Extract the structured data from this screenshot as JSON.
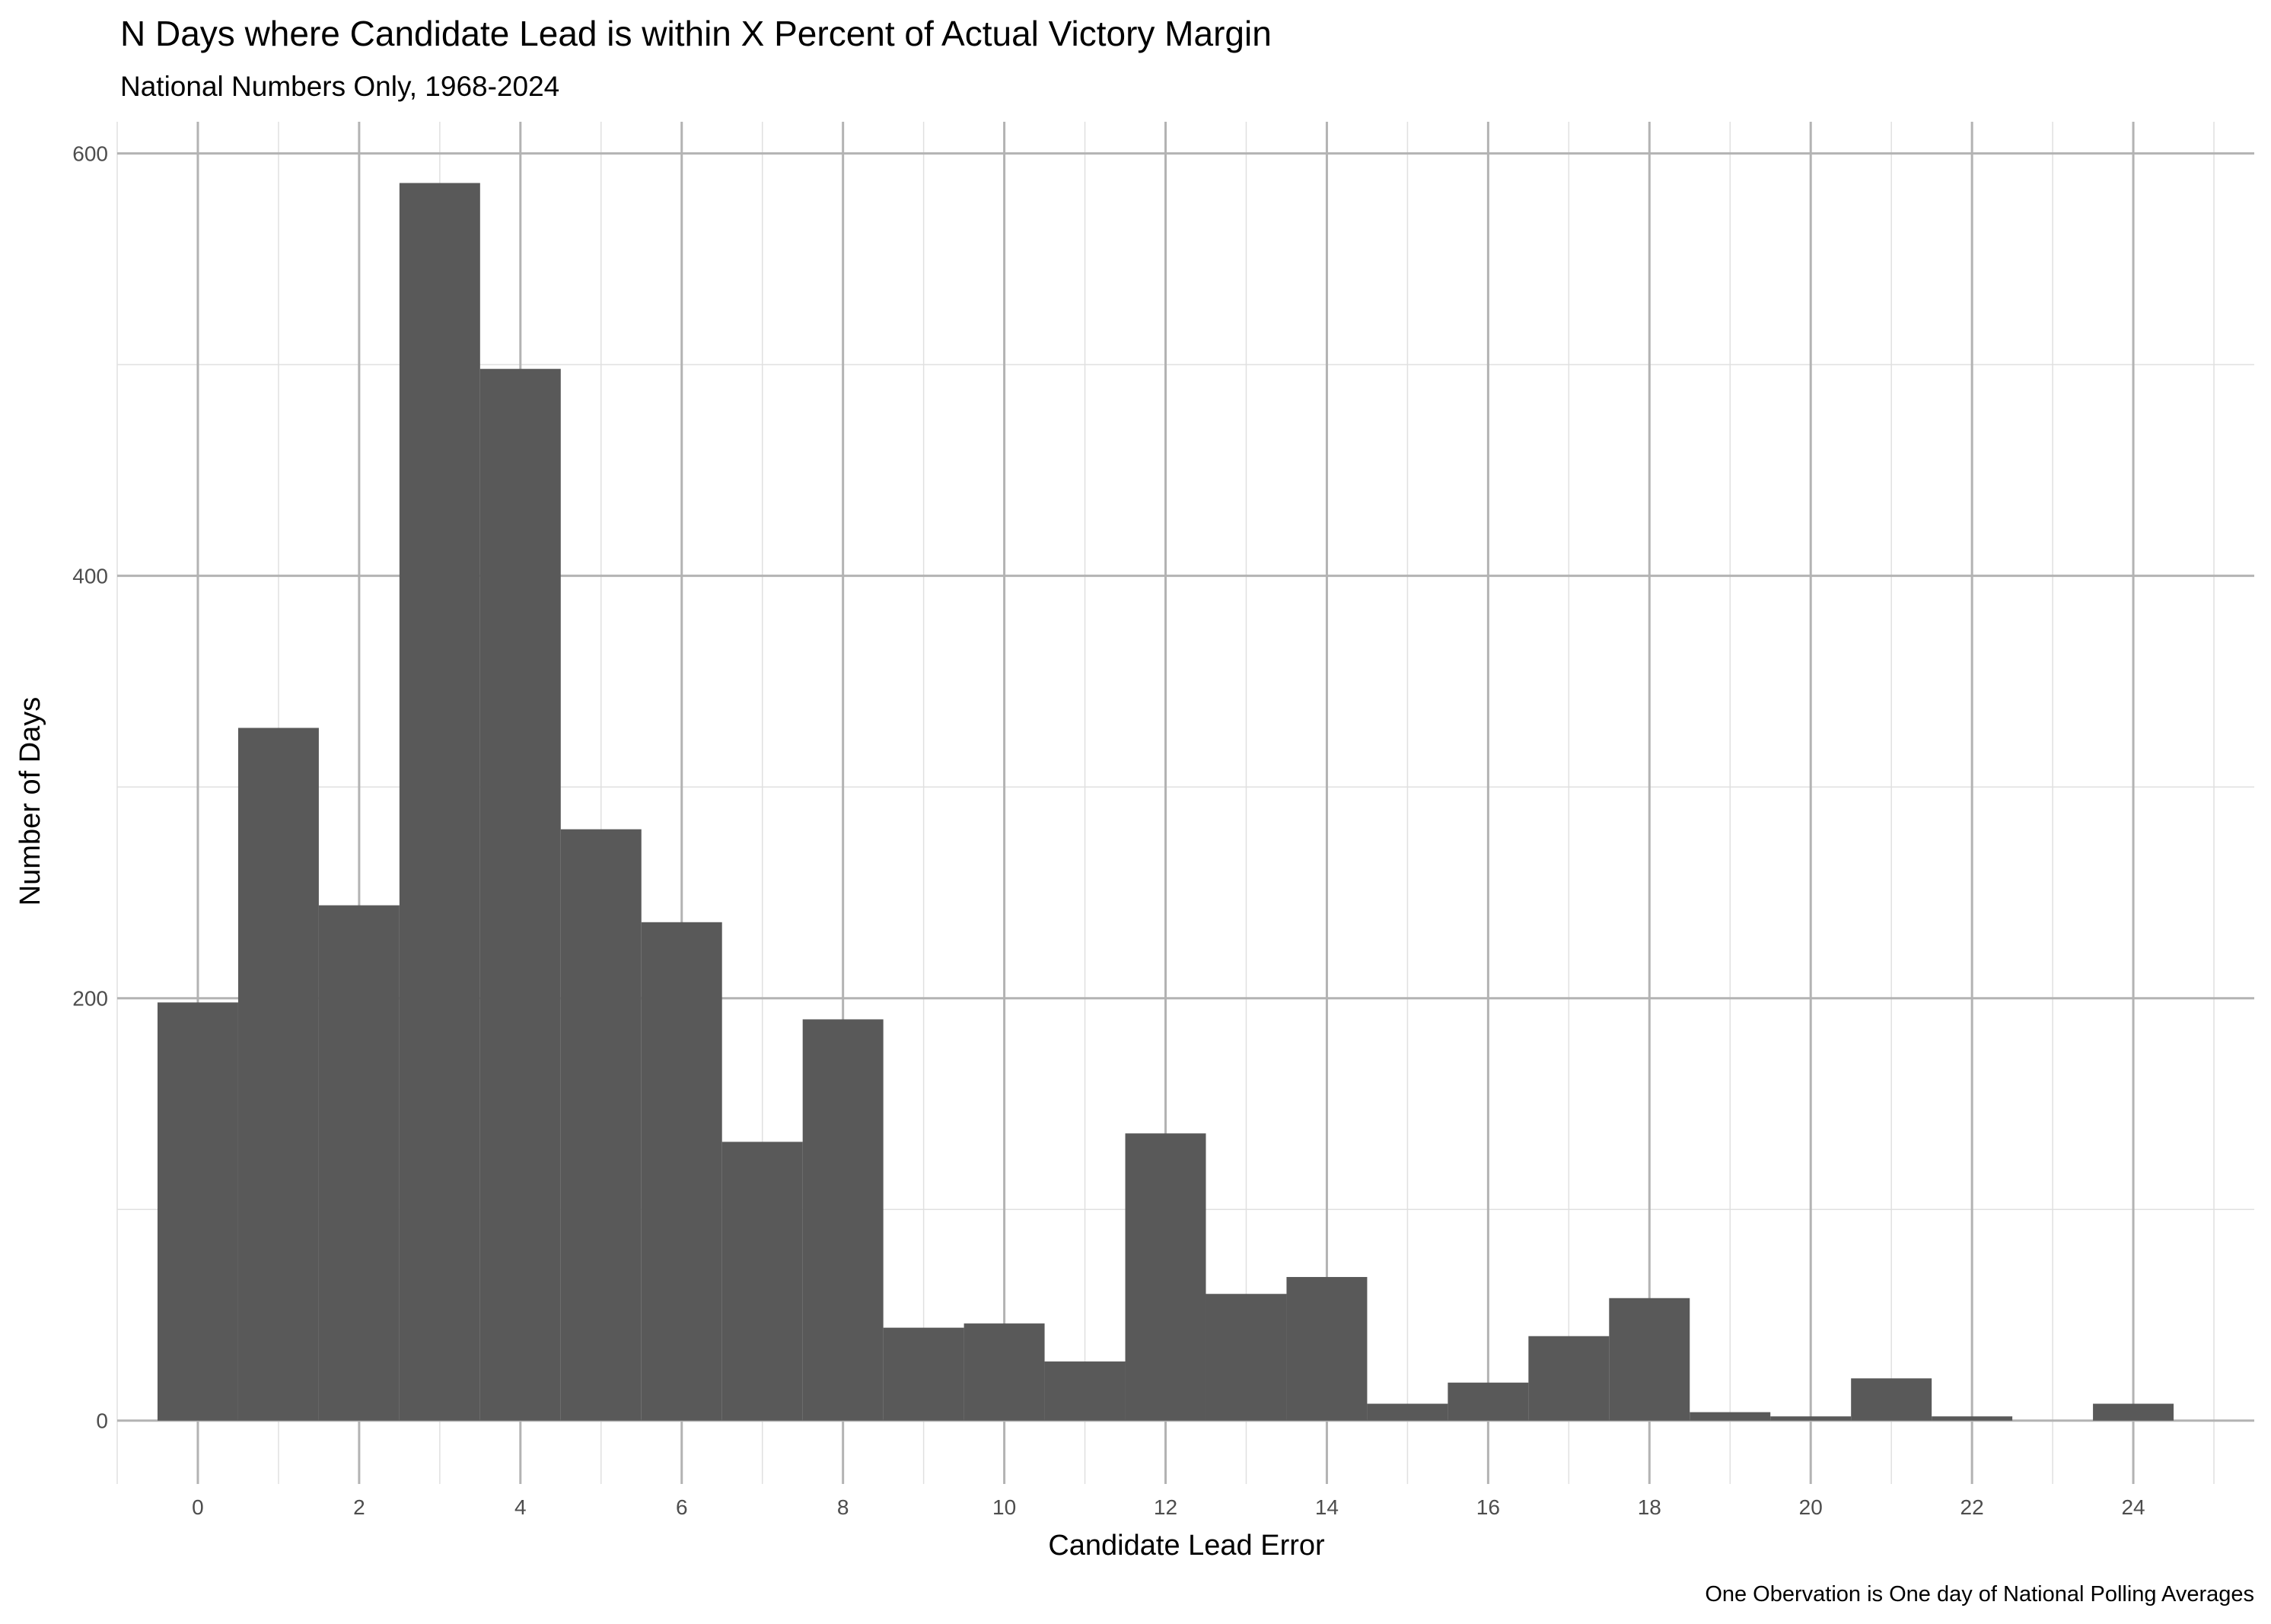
{
  "chart_data": {
    "type": "bar",
    "title": "N Days where Candidate Lead is within X Percent of Actual Victory Margin",
    "subtitle": "National Numbers Only, 1968-2024",
    "xlabel": "Candidate Lead Error",
    "ylabel": "Number of Days",
    "caption": "One Obervation is One day of National Polling Averages",
    "bar_color": "#595959",
    "grid_color_major": "#b3b3b3",
    "grid_color_minor": "#e0e0e0",
    "grid": true,
    "legend": "none",
    "xlim": [
      -1,
      25.5
    ],
    "ylim": [
      -30,
      615
    ],
    "x_ticks": [
      0,
      2,
      4,
      6,
      8,
      10,
      12,
      14,
      16,
      18,
      20,
      22,
      24
    ],
    "y_ticks": [
      0,
      200,
      400,
      600
    ],
    "bin_width": 1,
    "x": [
      0,
      1,
      2,
      3,
      4,
      5,
      6,
      7,
      8,
      9,
      10,
      11,
      12,
      13,
      14,
      15,
      16,
      17,
      18,
      19,
      20,
      21,
      22,
      23,
      24
    ],
    "values": [
      198,
      328,
      244,
      586,
      498,
      280,
      236,
      132,
      190,
      44,
      46,
      28,
      136,
      60,
      68,
      8,
      18,
      40,
      58,
      4,
      2,
      20,
      2,
      0,
      8
    ]
  }
}
